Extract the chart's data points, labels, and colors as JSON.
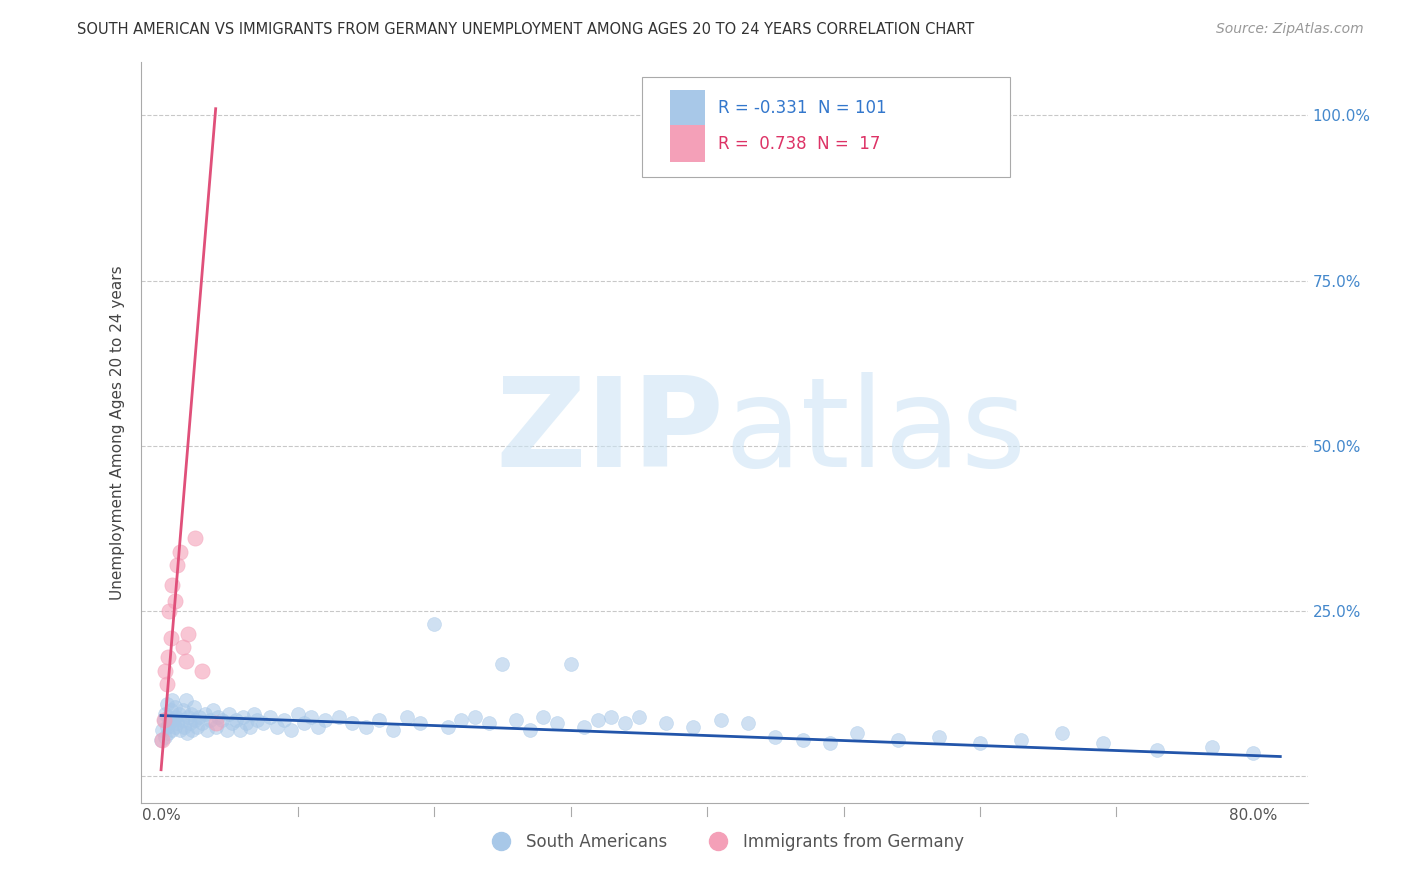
{
  "title": "SOUTH AMERICAN VS IMMIGRANTS FROM GERMANY UNEMPLOYMENT AMONG AGES 20 TO 24 YEARS CORRELATION CHART",
  "source": "Source: ZipAtlas.com",
  "ylabel": "Unemployment Among Ages 20 to 24 years",
  "x_tick_positions": [
    0.0,
    0.1,
    0.2,
    0.3,
    0.4,
    0.5,
    0.6,
    0.7,
    0.8
  ],
  "x_tick_labels": [
    "0.0%",
    "",
    "",
    "",
    "",
    "",
    "",
    "",
    "80.0%"
  ],
  "y_tick_positions": [
    0.0,
    0.25,
    0.5,
    0.75,
    1.0
  ],
  "y_tick_labels_right": [
    "",
    "25.0%",
    "50.0%",
    "75.0%",
    "100.0%"
  ],
  "xlim": [
    -0.015,
    0.84
  ],
  "ylim": [
    -0.04,
    1.08
  ],
  "blue_color": "#a8c8e8",
  "pink_color": "#f4a0b8",
  "blue_line_color": "#2255aa",
  "pink_line_color": "#e0507a",
  "series1_label": "South Americans",
  "series2_label": "Immigrants from Germany",
  "legend_blue_r": "-0.331",
  "legend_blue_n": "101",
  "legend_pink_r": "0.738",
  "legend_pink_n": "17",
  "blue_scatter_x": [
    0.0,
    0.001,
    0.002,
    0.003,
    0.003,
    0.004,
    0.004,
    0.005,
    0.005,
    0.006,
    0.007,
    0.008,
    0.008,
    0.009,
    0.01,
    0.01,
    0.011,
    0.012,
    0.013,
    0.014,
    0.015,
    0.016,
    0.017,
    0.018,
    0.019,
    0.02,
    0.021,
    0.022,
    0.023,
    0.024,
    0.025,
    0.026,
    0.028,
    0.03,
    0.032,
    0.034,
    0.036,
    0.038,
    0.04,
    0.042,
    0.045,
    0.048,
    0.05,
    0.052,
    0.055,
    0.058,
    0.06,
    0.062,
    0.065,
    0.068,
    0.07,
    0.075,
    0.08,
    0.085,
    0.09,
    0.095,
    0.1,
    0.105,
    0.11,
    0.115,
    0.12,
    0.13,
    0.14,
    0.15,
    0.16,
    0.17,
    0.18,
    0.19,
    0.2,
    0.21,
    0.22,
    0.23,
    0.24,
    0.25,
    0.26,
    0.27,
    0.28,
    0.29,
    0.3,
    0.31,
    0.32,
    0.33,
    0.34,
    0.35,
    0.37,
    0.39,
    0.41,
    0.43,
    0.45,
    0.47,
    0.49,
    0.51,
    0.54,
    0.57,
    0.6,
    0.63,
    0.66,
    0.69,
    0.73,
    0.77,
    0.8
  ],
  "blue_scatter_y": [
    0.055,
    0.07,
    0.085,
    0.06,
    0.095,
    0.075,
    0.11,
    0.065,
    0.09,
    0.08,
    0.1,
    0.07,
    0.115,
    0.085,
    0.075,
    0.105,
    0.09,
    0.08,
    0.095,
    0.07,
    0.085,
    0.1,
    0.075,
    0.115,
    0.065,
    0.09,
    0.08,
    0.095,
    0.07,
    0.105,
    0.085,
    0.075,
    0.09,
    0.08,
    0.095,
    0.07,
    0.085,
    0.1,
    0.075,
    0.09,
    0.085,
    0.07,
    0.095,
    0.08,
    0.085,
    0.07,
    0.09,
    0.08,
    0.075,
    0.095,
    0.085,
    0.08,
    0.09,
    0.075,
    0.085,
    0.07,
    0.095,
    0.08,
    0.09,
    0.075,
    0.085,
    0.09,
    0.08,
    0.075,
    0.085,
    0.07,
    0.09,
    0.08,
    0.23,
    0.075,
    0.085,
    0.09,
    0.08,
    0.17,
    0.085,
    0.07,
    0.09,
    0.08,
    0.17,
    0.075,
    0.085,
    0.09,
    0.08,
    0.09,
    0.08,
    0.075,
    0.085,
    0.08,
    0.06,
    0.055,
    0.05,
    0.065,
    0.055,
    0.06,
    0.05,
    0.055,
    0.065,
    0.05,
    0.04,
    0.045,
    0.035
  ],
  "pink_scatter_x": [
    0.001,
    0.002,
    0.003,
    0.004,
    0.005,
    0.006,
    0.007,
    0.008,
    0.01,
    0.012,
    0.014,
    0.016,
    0.018,
    0.02,
    0.025,
    0.03,
    0.04
  ],
  "pink_scatter_y": [
    0.055,
    0.085,
    0.16,
    0.14,
    0.18,
    0.25,
    0.21,
    0.29,
    0.265,
    0.32,
    0.34,
    0.195,
    0.175,
    0.215,
    0.36,
    0.16,
    0.08
  ],
  "pink_line_x0": 0.0,
  "pink_line_y0": 0.01,
  "pink_line_x1": 0.04,
  "pink_line_y1": 1.01,
  "blue_line_x0": 0.0,
  "blue_line_y0": 0.092,
  "blue_line_x1": 0.82,
  "blue_line_y1": 0.03
}
